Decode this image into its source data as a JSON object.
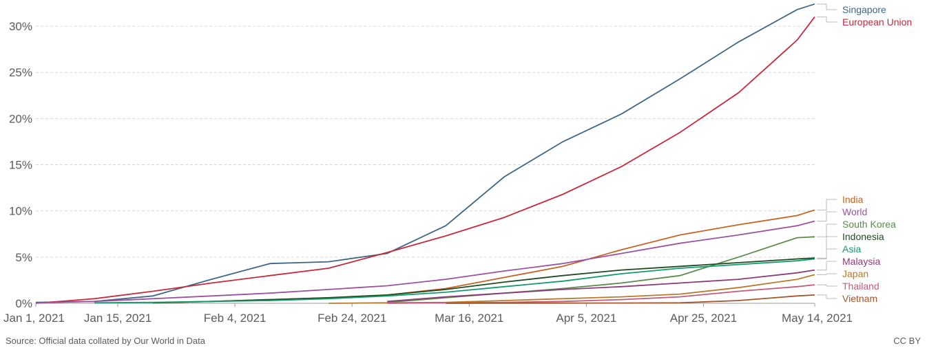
{
  "chart_data": {
    "type": "line",
    "x": [
      "2021-01-01",
      "2021-01-11",
      "2021-01-21",
      "2021-01-31",
      "2021-02-10",
      "2021-02-20",
      "2021-03-02",
      "2021-03-12",
      "2021-03-22",
      "2021-04-01",
      "2021-04-11",
      "2021-04-21",
      "2021-05-01",
      "2021-05-11",
      "2021-05-14"
    ],
    "series": [
      {
        "name": "Singapore",
        "color": "#3f6684",
        "values": [
          0.1,
          0.2,
          0.8,
          2.6,
          4.3,
          4.5,
          5.4,
          8.4,
          13.7,
          17.5,
          20.5,
          24.3,
          28.3,
          31.8,
          32.4
        ]
      },
      {
        "name": "European Union",
        "color": "#c8283c",
        "values": [
          0,
          0.5,
          1.3,
          2.2,
          3.0,
          3.8,
          5.5,
          7.3,
          9.3,
          11.8,
          14.8,
          18.5,
          22.8,
          28.5,
          31.0
        ]
      },
      {
        "name": "India",
        "color": "#c5631f",
        "values": [
          null,
          null,
          0.05,
          0.2,
          0.4,
          0.6,
          0.9,
          1.6,
          2.8,
          4.0,
          5.8,
          7.4,
          8.5,
          9.5,
          10.1
        ]
      },
      {
        "name": "World",
        "color": "#9a51a0",
        "values": [
          0.05,
          0.2,
          0.5,
          0.8,
          1.1,
          1.5,
          1.9,
          2.6,
          3.5,
          4.3,
          5.4,
          6.5,
          7.4,
          8.4,
          8.9
        ]
      },
      {
        "name": "South Korea",
        "color": "#5a8c48",
        "values": [
          null,
          null,
          null,
          null,
          null,
          null,
          0.1,
          0.6,
          1.1,
          1.6,
          2.2,
          3.0,
          5.0,
          7.1,
          7.2
        ]
      },
      {
        "name": "Indonesia",
        "color": "#1f4a1f",
        "values": [
          null,
          null,
          0.05,
          0.2,
          0.4,
          0.6,
          0.9,
          1.5,
          2.3,
          3.0,
          3.6,
          4.0,
          4.4,
          4.8,
          4.9
        ]
      },
      {
        "name": "Asia",
        "color": "#159a6e",
        "values": [
          null,
          0.05,
          0.1,
          0.2,
          0.3,
          0.5,
          0.8,
          1.2,
          1.8,
          2.4,
          3.2,
          3.8,
          4.2,
          4.6,
          4.8
        ]
      },
      {
        "name": "Malaysia",
        "color": "#8b3a7a",
        "values": [
          null,
          null,
          null,
          null,
          null,
          null,
          0.2,
          0.7,
          1.1,
          1.5,
          1.8,
          2.2,
          2.6,
          3.3,
          3.6
        ]
      },
      {
        "name": "Japan",
        "color": "#b87a2a",
        "values": [
          null,
          null,
          null,
          null,
          null,
          0,
          0.05,
          0.1,
          0.3,
          0.5,
          0.7,
          1.0,
          1.7,
          2.6,
          3.1
        ]
      },
      {
        "name": "Thailand",
        "color": "#c45a79",
        "values": [
          null,
          null,
          null,
          null,
          null,
          null,
          0,
          0.05,
          0.1,
          0.2,
          0.4,
          0.7,
          1.3,
          1.8,
          2.0
        ]
      },
      {
        "name": "Vietnam",
        "color": "#a2562c",
        "values": [
          null,
          null,
          null,
          null,
          null,
          null,
          null,
          0,
          0.01,
          0.02,
          0.03,
          0.05,
          0.3,
          0.8,
          0.9
        ]
      }
    ],
    "xlim": [
      "2021-01-01",
      "2021-05-14"
    ],
    "xticks": [
      {
        "value": "2021-01-01",
        "label": "Jan 1, 2021"
      },
      {
        "value": "2021-01-15",
        "label": "Jan 15, 2021"
      },
      {
        "value": "2021-02-04",
        "label": "Feb 4, 2021"
      },
      {
        "value": "2021-02-24",
        "label": "Feb 24, 2021"
      },
      {
        "value": "2021-03-16",
        "label": "Mar 16, 2021"
      },
      {
        "value": "2021-04-05",
        "label": "Apr 5, 2021"
      },
      {
        "value": "2021-04-25",
        "label": "Apr 25, 2021"
      },
      {
        "value": "2021-05-14",
        "label": "May 14, 2021"
      }
    ],
    "ylim": [
      0,
      32.5
    ],
    "yticks": [
      {
        "value": 0,
        "label": "0%"
      },
      {
        "value": 5,
        "label": "5%"
      },
      {
        "value": 10,
        "label": "10%"
      },
      {
        "value": 15,
        "label": "15%"
      },
      {
        "value": 20,
        "label": "20%"
      },
      {
        "value": 25,
        "label": "25%"
      },
      {
        "value": 30,
        "label": "30%"
      }
    ],
    "grid": true,
    "source": "Source: Official data collated by Our World in Data",
    "license": "CC BY"
  }
}
